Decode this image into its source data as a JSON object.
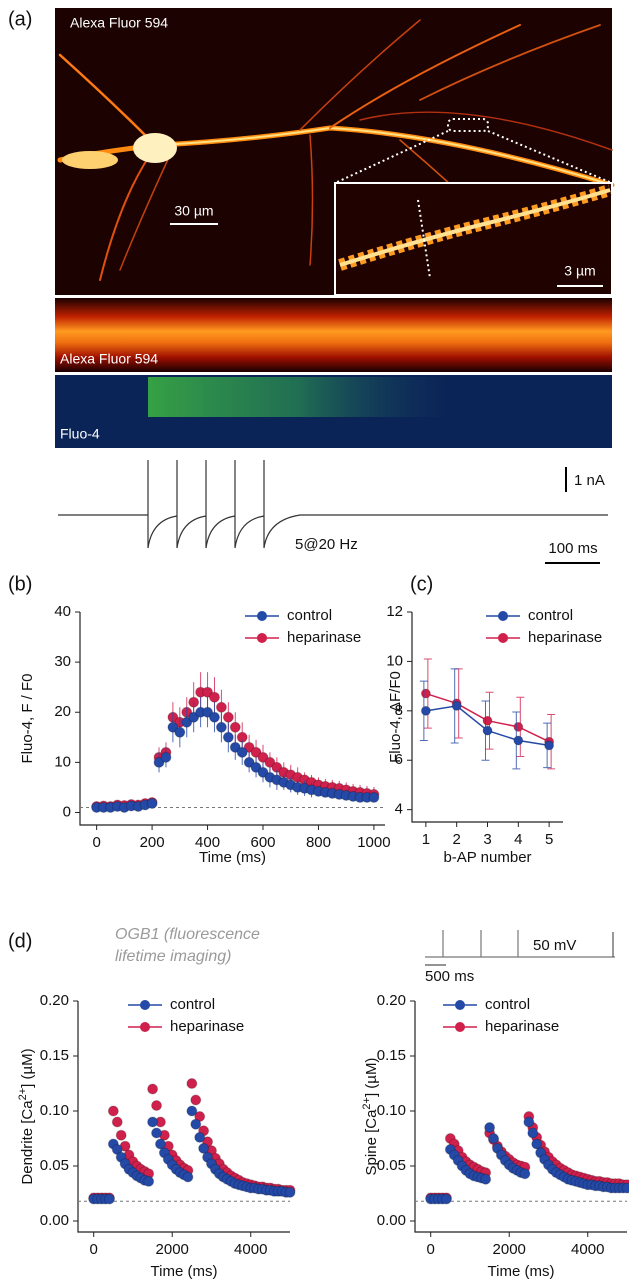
{
  "figure_a": {
    "panel_label": "(a)",
    "dye_label": "Alexa Fluor 594",
    "scale_bar": "30 µm",
    "inset_scale_bar": "3 µm",
    "linescan_red_label": "Alexa Fluor 594",
    "linescan_green_label": "Fluo-4",
    "current_scale": "1 nA",
    "stimulus": "5@20 Hz",
    "time_scale": "100 ms"
  },
  "figure_d": {
    "panel_label": "(d)",
    "annotation": "OGB1 (fluorescence lifetime imaging)",
    "voltage_scale": "50 mV",
    "time_scale": "500 ms"
  },
  "chart_data": [
    {
      "type": "scatter",
      "panel_label": "(b)",
      "x_label": "Time (ms)",
      "y_label": {
        "text": "Fluo-4, F / F0"
      },
      "x": [
        0,
        25,
        50,
        75,
        100,
        125,
        150,
        175,
        200,
        225,
        250,
        275,
        300,
        325,
        350,
        375,
        400,
        425,
        450,
        475,
        500,
        525,
        550,
        575,
        600,
        625,
        650,
        675,
        700,
        725,
        750,
        775,
        800,
        825,
        850,
        875,
        900,
        925,
        950,
        975,
        1000
      ],
      "series": [
        {
          "name": "control",
          "color": "#2449a6",
          "values": [
            1,
            1,
            1,
            1.2,
            1,
            1.3,
            1.2,
            1.5,
            1.8,
            10,
            11,
            17,
            16,
            18,
            19,
            20,
            20,
            19,
            17,
            15,
            13,
            12,
            10,
            9,
            8,
            7,
            6.5,
            6,
            5.5,
            5,
            4.8,
            4.5,
            4.2,
            4,
            3.8,
            3.6,
            3.4,
            3.2,
            3,
            3,
            3
          ],
          "errors": [
            1,
            1,
            1,
            1,
            1,
            1,
            1,
            1,
            1,
            2,
            2,
            3,
            3,
            3,
            3,
            3,
            3,
            3,
            3,
            3,
            2.5,
            2.5,
            2,
            2,
            2,
            2,
            2,
            1.5,
            1.5,
            1.5,
            1.5,
            1.5,
            1,
            1,
            1,
            1,
            1,
            1,
            1,
            1,
            1
          ]
        },
        {
          "name": "heparinase",
          "color": "#d0204c",
          "values": [
            1.2,
            1.3,
            1.2,
            1.5,
            1.4,
            1.6,
            1.5,
            1.8,
            2,
            11,
            12,
            19,
            18,
            20,
            22,
            24,
            24,
            23,
            21,
            19,
            17,
            15,
            13,
            12,
            11,
            10,
            9,
            8,
            7.5,
            7,
            6.5,
            6,
            5.5,
            5.2,
            5,
            4.8,
            4.5,
            4.2,
            4,
            3.8,
            3.6
          ],
          "errors": [
            1,
            1,
            1,
            1,
            1,
            1,
            1,
            1,
            1,
            2,
            2,
            3,
            3,
            3,
            4,
            4,
            4,
            4,
            3.5,
            3,
            3,
            3,
            2.5,
            2.5,
            2.5,
            2,
            2,
            2,
            2,
            2,
            1.5,
            1.5,
            1.5,
            1.5,
            1.5,
            1.5,
            1.5,
            1.5,
            1.5,
            1.5,
            1.5
          ]
        }
      ],
      "xlim": [
        -60,
        1040
      ],
      "ylim": [
        -2.5,
        40
      ],
      "xticks": [
        0,
        200,
        400,
        600,
        800,
        1000
      ],
      "yticks": [
        0,
        10,
        20,
        30,
        40
      ],
      "reference_line": 1,
      "legend": "top-right"
    },
    {
      "type": "line",
      "panel_label": "(c)",
      "x_label": "b-AP number",
      "y_label": {
        "text": "Fluo-4, ΔF/F0"
      },
      "x": [
        1,
        2,
        3,
        4,
        5
      ],
      "series": [
        {
          "name": "control",
          "color": "#2449a6",
          "values": [
            8.0,
            8.2,
            7.2,
            6.8,
            6.6
          ],
          "errors": [
            1.2,
            1.5,
            1.2,
            1.15,
            0.9
          ]
        },
        {
          "name": "heparinase",
          "color": "#d0204c",
          "values": [
            8.7,
            8.3,
            7.6,
            7.35,
            6.75
          ],
          "errors": [
            1.4,
            1.4,
            1.15,
            1.2,
            1.1
          ]
        }
      ],
      "xlim": [
        0.55,
        5.45
      ],
      "ylim": [
        3.5,
        12
      ],
      "xticks": [
        1,
        2,
        3,
        4,
        5
      ],
      "yticks": [
        4,
        6,
        8,
        10,
        12
      ],
      "legend": "top-right"
    },
    {
      "type": "scatter",
      "x_label": "Time (ms)",
      "y_label": {
        "text": "Dendrite [Ca",
        "sup": "2+",
        "tail": "] (µM)"
      },
      "x": [
        0,
        100,
        200,
        300,
        400,
        500,
        600,
        700,
        800,
        900,
        1000,
        1100,
        1200,
        1300,
        1400,
        1500,
        1600,
        1700,
        1800,
        1900,
        2000,
        2100,
        2200,
        2300,
        2400,
        2500,
        2600,
        2700,
        2800,
        2900,
        3000,
        3100,
        3200,
        3300,
        3400,
        3500,
        3600,
        3700,
        3800,
        3900,
        4000,
        4100,
        4200,
        4300,
        4400,
        4500,
        4600,
        4700,
        4800,
        4900,
        5000
      ],
      "series": [
        {
          "name": "control",
          "color": "#2449a6",
          "values": [
            0.02,
            0.02,
            0.02,
            0.02,
            0.02,
            0.07,
            0.065,
            0.058,
            0.052,
            0.047,
            0.044,
            0.041,
            0.039,
            0.037,
            0.036,
            0.09,
            0.08,
            0.07,
            0.062,
            0.056,
            0.051,
            0.047,
            0.044,
            0.042,
            0.04,
            0.1,
            0.088,
            0.076,
            0.066,
            0.058,
            0.052,
            0.047,
            0.043,
            0.04,
            0.038,
            0.036,
            0.034,
            0.033,
            0.032,
            0.031,
            0.03,
            0.03,
            0.029,
            0.029,
            0.028,
            0.028,
            0.027,
            0.027,
            0.027,
            0.026,
            0.026
          ]
        },
        {
          "name": "heparinase",
          "color": "#d0204c",
          "values": [
            0.021,
            0.021,
            0.021,
            0.021,
            0.021,
            0.1,
            0.09,
            0.078,
            0.068,
            0.06,
            0.054,
            0.05,
            0.047,
            0.045,
            0.043,
            0.12,
            0.105,
            0.09,
            0.078,
            0.068,
            0.06,
            0.055,
            0.051,
            0.048,
            0.046,
            0.125,
            0.11,
            0.095,
            0.082,
            0.072,
            0.064,
            0.057,
            0.052,
            0.047,
            0.044,
            0.041,
            0.039,
            0.037,
            0.035,
            0.034,
            0.033,
            0.032,
            0.031,
            0.031,
            0.03,
            0.03,
            0.029,
            0.029,
            0.028,
            0.028,
            0.028
          ]
        }
      ],
      "xlim": [
        -400,
        5000
      ],
      "ylim": [
        -0.01,
        0.2
      ],
      "xticks": [
        0,
        2000,
        4000
      ],
      "yticks": [
        {
          "value": 0,
          "label": "0.00"
        },
        {
          "value": 0.05,
          "label": "0.05"
        },
        {
          "value": 0.1,
          "label": "0.10"
        },
        {
          "value": 0.15,
          "label": "0.15"
        },
        {
          "value": 0.2,
          "label": "0.20"
        }
      ],
      "reference_line": 0.018,
      "legend": "top-right"
    },
    {
      "type": "scatter",
      "x_label": "Time (ms)",
      "y_label": {
        "text": "Spine [Ca",
        "sup": "2+",
        "tail": "] (µM)"
      },
      "x": [
        0,
        100,
        200,
        300,
        400,
        500,
        600,
        700,
        800,
        900,
        1000,
        1100,
        1200,
        1300,
        1400,
        1500,
        1600,
        1700,
        1800,
        1900,
        2000,
        2100,
        2200,
        2300,
        2400,
        2500,
        2600,
        2700,
        2800,
        2900,
        3000,
        3100,
        3200,
        3300,
        3400,
        3500,
        3600,
        3700,
        3800,
        3900,
        4000,
        4100,
        4200,
        4300,
        4400,
        4500,
        4600,
        4700,
        4800,
        4900,
        5000
      ],
      "series": [
        {
          "name": "control",
          "color": "#2449a6",
          "values": [
            0.02,
            0.02,
            0.02,
            0.02,
            0.02,
            0.065,
            0.06,
            0.055,
            0.05,
            0.046,
            0.043,
            0.041,
            0.04,
            0.039,
            0.038,
            0.085,
            0.075,
            0.066,
            0.06,
            0.055,
            0.051,
            0.048,
            0.046,
            0.044,
            0.043,
            0.09,
            0.08,
            0.07,
            0.062,
            0.056,
            0.051,
            0.047,
            0.044,
            0.042,
            0.04,
            0.038,
            0.037,
            0.036,
            0.035,
            0.034,
            0.033,
            0.033,
            0.032,
            0.032,
            0.031,
            0.031,
            0.03,
            0.03,
            0.03,
            0.03,
            0.03
          ]
        },
        {
          "name": "heparinase",
          "color": "#d0204c",
          "values": [
            0.021,
            0.021,
            0.021,
            0.021,
            0.021,
            0.075,
            0.07,
            0.064,
            0.058,
            0.054,
            0.051,
            0.049,
            0.047,
            0.045,
            0.044,
            0.08,
            0.074,
            0.068,
            0.063,
            0.059,
            0.056,
            0.053,
            0.051,
            0.05,
            0.049,
            0.095,
            0.085,
            0.076,
            0.069,
            0.063,
            0.058,
            0.054,
            0.051,
            0.048,
            0.046,
            0.044,
            0.042,
            0.041,
            0.04,
            0.039,
            0.038,
            0.037,
            0.036,
            0.036,
            0.035,
            0.035,
            0.034,
            0.034,
            0.034,
            0.033,
            0.033
          ]
        }
      ],
      "xlim": [
        -400,
        5000
      ],
      "ylim": [
        -0.01,
        0.2
      ],
      "xticks": [
        0,
        2000,
        4000
      ],
      "yticks": [
        {
          "value": 0,
          "label": "0.00"
        },
        {
          "value": 0.05,
          "label": "0.05"
        },
        {
          "value": 0.1,
          "label": "0.10"
        },
        {
          "value": 0.15,
          "label": "0.15"
        },
        {
          "value": 0.2,
          "label": "0.20"
        }
      ],
      "reference_line": 0.018,
      "legend": "top-right"
    }
  ]
}
